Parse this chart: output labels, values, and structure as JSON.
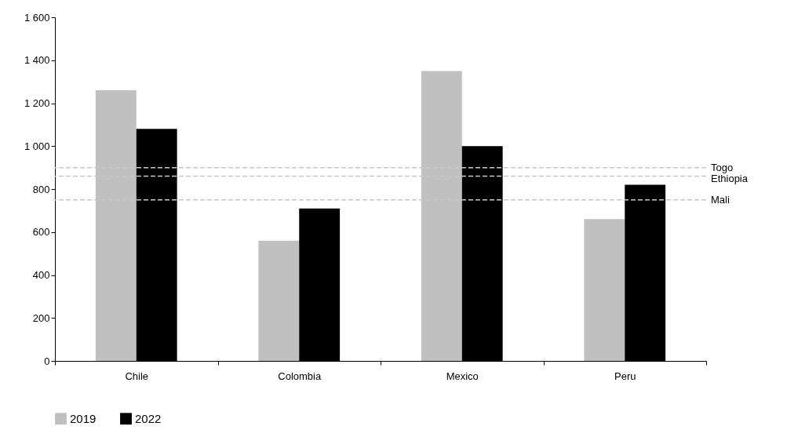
{
  "chart_data": {
    "type": "bar",
    "categories": [
      "Chile",
      "Colombia",
      "Mexico",
      "Peru"
    ],
    "series": [
      {
        "name": "2019",
        "color": "#c0c0c0",
        "values": [
          1260,
          560,
          1350,
          660
        ]
      },
      {
        "name": "2022",
        "color": "#000000",
        "values": [
          1080,
          710,
          1000,
          820
        ]
      }
    ],
    "ylim": [
      0,
      1600
    ],
    "yticks": [
      0,
      200,
      400,
      600,
      800,
      {
        "value": 1000,
        "label": "1 000"
      },
      {
        "value": 1200,
        "label": "1 200"
      },
      {
        "value": 1400,
        "label": "1 400"
      },
      {
        "value": 1600,
        "label": "1 600"
      }
    ],
    "ref_lines": [
      {
        "axis": "y",
        "value": 900,
        "label": "Togo",
        "color": "#c8c8c8",
        "line_style": "dashed"
      },
      {
        "axis": "y",
        "value": 860,
        "label": "Ethiopia",
        "color": "#c8c8c8",
        "line_style": "dashed"
      },
      {
        "axis": "y",
        "value": 750,
        "label": "Mali",
        "color": "#c8c8c8",
        "line_style": "dashed"
      }
    ],
    "grid": false,
    "legend": "bottom"
  }
}
